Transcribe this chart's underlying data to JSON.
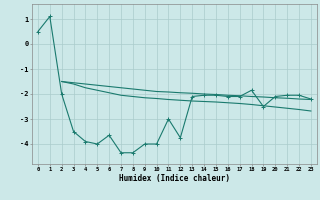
{
  "title": "",
  "xlabel": "Humidex (Indice chaleur)",
  "ylabel": "",
  "bg_color": "#cce8e8",
  "line_color": "#1a7a6e",
  "grid_color": "#aacccc",
  "xlim": [
    -0.5,
    23.5
  ],
  "ylim": [
    -4.8,
    1.6
  ],
  "yticks": [
    1,
    0,
    -1,
    -2,
    -3,
    -4
  ],
  "xticks": [
    0,
    1,
    2,
    3,
    4,
    5,
    6,
    7,
    8,
    9,
    10,
    11,
    12,
    13,
    14,
    15,
    16,
    17,
    18,
    19,
    20,
    21,
    22,
    23
  ],
  "series1_x": [
    0,
    1,
    2,
    3,
    4,
    5,
    6,
    7,
    8,
    9,
    10,
    11,
    12,
    13,
    14,
    15,
    16,
    17,
    18,
    19,
    20,
    21,
    22,
    23
  ],
  "series1_y": [
    0.5,
    1.1,
    -2.0,
    -3.5,
    -3.9,
    -4.0,
    -3.65,
    -4.35,
    -4.35,
    -4.0,
    -4.0,
    -3.0,
    -3.75,
    -2.1,
    -2.05,
    -2.05,
    -2.1,
    -2.1,
    -1.85,
    -2.5,
    -2.1,
    -2.05,
    -2.05,
    -2.2
  ],
  "series2_x": [
    2,
    3,
    4,
    5,
    6,
    7,
    8,
    9,
    10,
    11,
    12,
    13,
    14,
    15,
    16,
    17,
    18,
    19,
    20,
    21,
    22,
    23
  ],
  "series2_y": [
    -1.5,
    -1.55,
    -1.6,
    -1.65,
    -1.7,
    -1.75,
    -1.8,
    -1.85,
    -1.9,
    -1.92,
    -1.95,
    -1.97,
    -2.0,
    -2.02,
    -2.05,
    -2.07,
    -2.1,
    -2.12,
    -2.15,
    -2.17,
    -2.2,
    -2.22
  ],
  "series3_x": [
    2,
    3,
    4,
    5,
    6,
    7,
    8,
    9,
    10,
    11,
    12,
    13,
    14,
    15,
    16,
    17,
    18,
    19,
    20,
    21,
    22,
    23
  ],
  "series3_y": [
    -1.5,
    -1.6,
    -1.75,
    -1.85,
    -1.95,
    -2.05,
    -2.1,
    -2.15,
    -2.18,
    -2.22,
    -2.25,
    -2.28,
    -2.3,
    -2.32,
    -2.35,
    -2.38,
    -2.42,
    -2.47,
    -2.52,
    -2.57,
    -2.62,
    -2.68
  ]
}
